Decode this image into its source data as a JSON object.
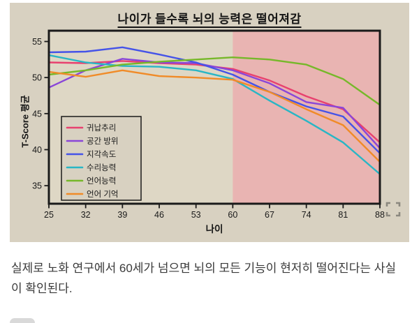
{
  "chart_data": {
    "type": "line",
    "title": "나이가 들수록 뇌의 능력은 떨어져감",
    "xlabel": "나이",
    "ylabel": "T-Score 평균",
    "x": [
      25,
      32,
      39,
      46,
      53,
      60,
      67,
      74,
      81,
      88
    ],
    "xlim": [
      25,
      88
    ],
    "yticks": [
      35,
      40,
      45,
      50,
      55
    ],
    "ylim": [
      32.5,
      56.5
    ],
    "grid": false,
    "legend_position": "lower-left-inside",
    "highlight_region": {
      "from": 60,
      "to": 88,
      "color": "#e9b4b2"
    },
    "series": [
      {
        "name": "귀납추리",
        "color": "#e8416f",
        "values": [
          52.1,
          52.0,
          52.3,
          52.0,
          51.8,
          51.2,
          49.6,
          47.4,
          45.6,
          41.0
        ]
      },
      {
        "name": "공간 방위",
        "color": "#8a46d8",
        "values": [
          48.6,
          51.0,
          52.6,
          52.1,
          52.0,
          51.0,
          49.2,
          46.6,
          45.8,
          40.2
        ]
      },
      {
        "name": "지각속도",
        "color": "#4553e8",
        "values": [
          53.5,
          53.6,
          54.2,
          53.2,
          52.1,
          50.4,
          48.0,
          46.0,
          44.6,
          39.5
        ]
      },
      {
        "name": "수리능력",
        "color": "#29b6c5",
        "values": [
          53.1,
          52.1,
          51.6,
          51.5,
          51.0,
          49.8,
          46.8,
          44.0,
          41.0,
          36.6
        ]
      },
      {
        "name": "언어능력",
        "color": "#76b82a",
        "values": [
          50.4,
          51.0,
          51.8,
          52.2,
          52.5,
          52.8,
          52.5,
          51.8,
          49.8,
          46.2
        ]
      },
      {
        "name": "언어 기억",
        "color": "#f08b28",
        "values": [
          50.8,
          50.1,
          51.0,
          50.2,
          50.0,
          49.7,
          48.0,
          45.6,
          43.4,
          38.3
        ]
      }
    ]
  },
  "caption": {
    "text": "실제로 노화 연구에서 60세가 넘으면 뇌의 모든 기능이 현저히 떨어진다는 사실이 확인된다."
  },
  "colors": {
    "card_bg": "#d8d1c1",
    "plot_bg": "#ded7c5",
    "border": "#1a1a1a",
    "tick_text": "#1a1a1a",
    "caption_text": "#3a3a3a",
    "icon_gray": "#8b887f"
  }
}
